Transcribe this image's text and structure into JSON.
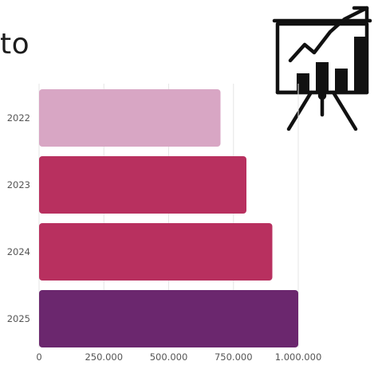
{
  "title_fragment": "to",
  "icon": "presentation-board-growth-chart-icon",
  "colors": {
    "grid": "#e6e6e6",
    "axis_text": "#555555",
    "bar_2022": "#d8a6c4",
    "bar_2023": "#b8305f",
    "bar_2024": "#b8305f",
    "bar_2025": "#6b276e",
    "icon_stroke": "#111111"
  },
  "chart_data": {
    "type": "bar",
    "orientation": "horizontal",
    "categories": [
      "2022",
      "2023",
      "2024",
      "2025"
    ],
    "values": [
      700000,
      800000,
      900000,
      1000000
    ],
    "xlim": [
      0,
      1000000
    ],
    "xticks": [
      0,
      250000,
      500000,
      750000,
      1000000
    ],
    "xtick_labels": [
      "0",
      "250.000",
      "500.000",
      "750.000",
      "1.000.000"
    ],
    "grid": true
  }
}
